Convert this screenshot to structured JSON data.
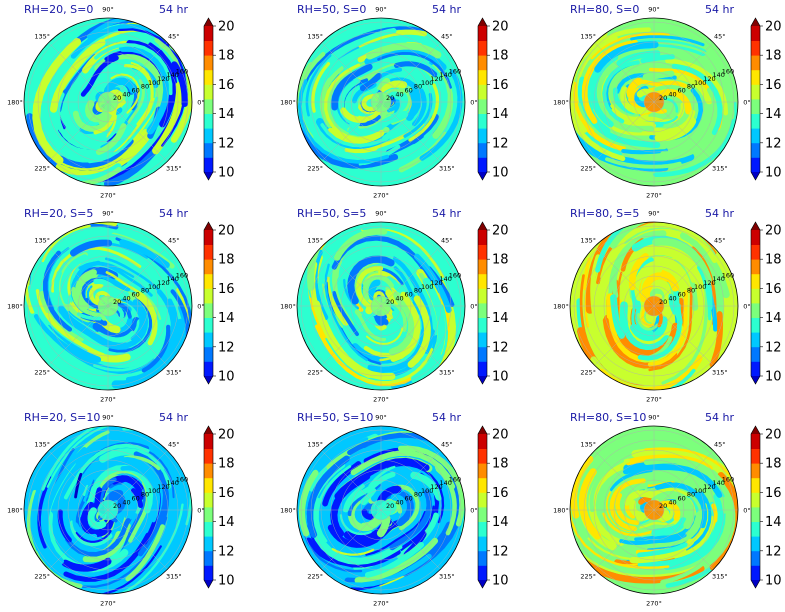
{
  "figure": {
    "rows": 3,
    "cols": 3,
    "panel_time_label": "54 hr",
    "angle_labels": [
      "0°",
      "45°",
      "90°",
      "135°",
      "180°",
      "225°",
      "270°",
      "315°"
    ],
    "radial_labels": [
      "20",
      "40",
      "60",
      "80",
      "100",
      "120",
      "140",
      "160"
    ],
    "colorbar_ticks": [
      "10",
      "12",
      "14",
      "16",
      "18",
      "20"
    ],
    "colormap_levels": [
      10,
      11,
      12,
      13,
      14,
      15,
      16,
      17,
      18,
      19,
      20,
      21
    ],
    "colormap_colors": [
      "#0000c4",
      "#0019ff",
      "#0078ff",
      "#00c8ff",
      "#2cffd0",
      "#7cff7c",
      "#c8ff2e",
      "#ffe600",
      "#ff8c00",
      "#ff3200",
      "#cc0000",
      "#800000"
    ]
  },
  "chart_data": [
    {
      "type": "heatmap",
      "projection": "polar",
      "title": "RH=20, S=0",
      "subtitle": "54 hr",
      "radial_ticks": [
        20,
        40,
        60,
        80,
        100,
        120,
        140,
        160
      ],
      "angle_ticks_deg": [
        0,
        45,
        90,
        135,
        180,
        225,
        270,
        315
      ],
      "colorbar_range": [
        10,
        21
      ],
      "colorbar_ticks": [
        10,
        12,
        14,
        16,
        18,
        20
      ],
      "approx_mean_value": 14.2
    },
    {
      "type": "heatmap",
      "projection": "polar",
      "title": "RH=50, S=0",
      "subtitle": "54 hr",
      "radial_ticks": [
        20,
        40,
        60,
        80,
        100,
        120,
        140,
        160
      ],
      "angle_ticks_deg": [
        0,
        45,
        90,
        135,
        180,
        225,
        270,
        315
      ],
      "colorbar_range": [
        10,
        21
      ],
      "colorbar_ticks": [
        10,
        12,
        14,
        16,
        18,
        20
      ],
      "approx_mean_value": 14.6
    },
    {
      "type": "heatmap",
      "projection": "polar",
      "title": "RH=80, S=0",
      "subtitle": "54 hr",
      "radial_ticks": [
        20,
        40,
        60,
        80,
        100,
        120,
        140,
        160
      ],
      "angle_ticks_deg": [
        0,
        45,
        90,
        135,
        180,
        225,
        270,
        315
      ],
      "colorbar_range": [
        10,
        21
      ],
      "colorbar_ticks": [
        10,
        12,
        14,
        16,
        18,
        20
      ],
      "approx_mean_value": 15.6
    },
    {
      "type": "heatmap",
      "projection": "polar",
      "title": "RH=20, S=5",
      "subtitle": "54 hr",
      "radial_ticks": [
        20,
        40,
        60,
        80,
        100,
        120,
        140,
        160
      ],
      "angle_ticks_deg": [
        0,
        45,
        90,
        135,
        180,
        225,
        270,
        315
      ],
      "colorbar_range": [
        10,
        21
      ],
      "colorbar_ticks": [
        10,
        12,
        14,
        16,
        18,
        20
      ],
      "approx_mean_value": 14.5
    },
    {
      "type": "heatmap",
      "projection": "polar",
      "title": "RH=50, S=5",
      "subtitle": "54 hr",
      "radial_ticks": [
        20,
        40,
        60,
        80,
        100,
        120,
        140,
        160
      ],
      "angle_ticks_deg": [
        0,
        45,
        90,
        135,
        180,
        225,
        270,
        315
      ],
      "colorbar_range": [
        10,
        21
      ],
      "colorbar_ticks": [
        10,
        12,
        14,
        16,
        18,
        20
      ],
      "approx_mean_value": 14.8
    },
    {
      "type": "heatmap",
      "projection": "polar",
      "title": "RH=80, S=5",
      "subtitle": "54 hr",
      "radial_ticks": [
        20,
        40,
        60,
        80,
        100,
        120,
        140,
        160
      ],
      "angle_ticks_deg": [
        0,
        45,
        90,
        135,
        180,
        225,
        270,
        315
      ],
      "colorbar_range": [
        10,
        21
      ],
      "colorbar_ticks": [
        10,
        12,
        14,
        16,
        18,
        20
      ],
      "approx_mean_value": 16.2
    },
    {
      "type": "heatmap",
      "projection": "polar",
      "title": "RH=20, S=10",
      "subtitle": "54 hr",
      "radial_ticks": [
        20,
        40,
        60,
        80,
        100,
        120,
        140,
        160
      ],
      "angle_ticks_deg": [
        0,
        45,
        90,
        135,
        180,
        225,
        270,
        315
      ],
      "colorbar_range": [
        10,
        21
      ],
      "colorbar_ticks": [
        10,
        12,
        14,
        16,
        18,
        20
      ],
      "approx_mean_value": 13.4
    },
    {
      "type": "heatmap",
      "projection": "polar",
      "title": "RH=50, S=10",
      "subtitle": "54 hr",
      "radial_ticks": [
        20,
        40,
        60,
        80,
        100,
        120,
        140,
        160
      ],
      "angle_ticks_deg": [
        0,
        45,
        90,
        135,
        180,
        225,
        270,
        315
      ],
      "colorbar_range": [
        10,
        21
      ],
      "colorbar_ticks": [
        10,
        12,
        14,
        16,
        18,
        20
      ],
      "approx_mean_value": 13.6
    },
    {
      "type": "heatmap",
      "projection": "polar",
      "title": "RH=80, S=10",
      "subtitle": "54 hr",
      "radial_ticks": [
        20,
        40,
        60,
        80,
        100,
        120,
        140,
        160
      ],
      "angle_ticks_deg": [
        0,
        45,
        90,
        135,
        180,
        225,
        270,
        315
      ],
      "colorbar_range": [
        10,
        21
      ],
      "colorbar_ticks": [
        10,
        12,
        14,
        16,
        18,
        20
      ],
      "approx_mean_value": 15.8
    }
  ]
}
